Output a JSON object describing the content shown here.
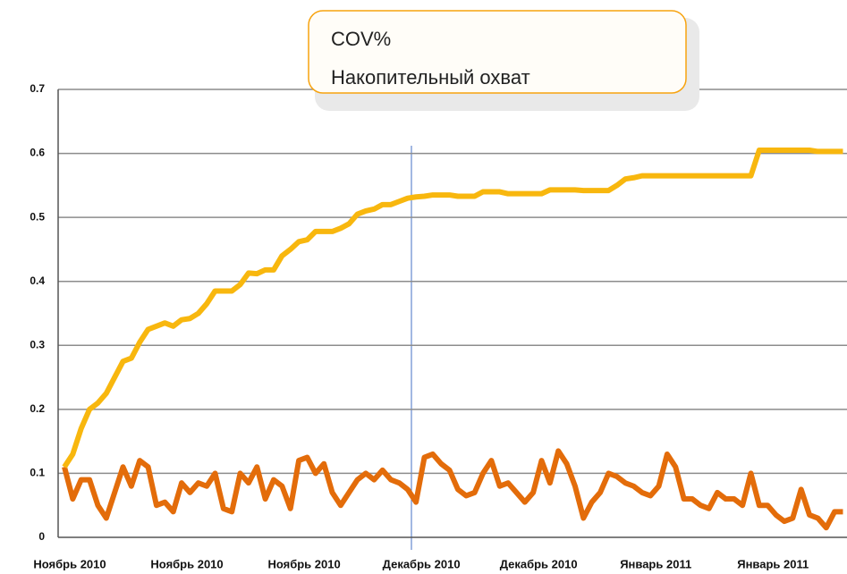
{
  "chart_data": {
    "type": "line",
    "categories": [
      "Ноябрь 2010",
      null,
      null,
      null,
      null,
      null,
      null,
      null,
      null,
      null,
      null,
      null,
      null,
      null,
      "Ноябрь 2010",
      null,
      null,
      null,
      null,
      null,
      null,
      null,
      null,
      null,
      null,
      null,
      null,
      null,
      "Ноябрь 2010",
      null,
      null,
      null,
      null,
      null,
      null,
      null,
      null,
      null,
      null,
      null,
      null,
      null,
      "Декабрь 2010",
      null,
      null,
      null,
      null,
      null,
      null,
      null,
      null,
      null,
      null,
      null,
      null,
      null,
      "Декабрь 2010",
      null,
      null,
      null,
      null,
      null,
      null,
      null,
      null,
      null,
      null,
      null,
      null,
      null,
      "Январь 2011",
      null,
      null,
      null,
      null,
      null,
      null,
      null,
      null,
      null,
      null,
      null,
      null,
      null,
      "Январь 2011",
      null,
      null,
      null,
      null,
      null,
      null,
      null,
      null,
      null
    ],
    "series": [
      {
        "name": "COV%",
        "color": "#e36c0a",
        "values": [
          0.11,
          0.06,
          0.09,
          0.09,
          0.05,
          0.03,
          0.07,
          0.11,
          0.08,
          0.12,
          0.11,
          0.05,
          0.055,
          0.04,
          0.085,
          0.07,
          0.085,
          0.08,
          0.1,
          0.045,
          0.04,
          0.1,
          0.085,
          0.11,
          0.06,
          0.09,
          0.08,
          0.045,
          0.12,
          0.125,
          0.1,
          0.115,
          0.07,
          0.05,
          0.07,
          0.09,
          0.1,
          0.09,
          0.105,
          0.09,
          0.085,
          0.075,
          0.055,
          0.125,
          0.13,
          0.115,
          0.105,
          0.075,
          0.065,
          0.07,
          0.1,
          0.12,
          0.08,
          0.085,
          0.07,
          0.055,
          0.07,
          0.12,
          0.085,
          0.135,
          0.115,
          0.08,
          0.03,
          0.055,
          0.07,
          0.1,
          0.095,
          0.085,
          0.08,
          0.07,
          0.065,
          0.08,
          0.13,
          0.11,
          0.06,
          0.06,
          0.05,
          0.045,
          0.07,
          0.06,
          0.06,
          0.05,
          0.1,
          0.05,
          0.05,
          0.035,
          0.025,
          0.03,
          0.075,
          0.035,
          0.03,
          0.015,
          0.04,
          0.04
        ]
      },
      {
        "name": "Накопительный охват",
        "color": "#f8b70e",
        "values": [
          0.11,
          0.13,
          0.17,
          0.2,
          0.21,
          0.225,
          0.25,
          0.275,
          0.28,
          0.305,
          0.325,
          0.33,
          0.335,
          0.33,
          0.34,
          0.342,
          0.35,
          0.365,
          0.385,
          0.385,
          0.385,
          0.395,
          0.413,
          0.412,
          0.418,
          0.418,
          0.44,
          0.45,
          0.462,
          0.465,
          0.478,
          0.478,
          0.478,
          0.483,
          0.49,
          0.505,
          0.51,
          0.513,
          0.52,
          0.52,
          0.525,
          0.53,
          0.532,
          0.533,
          0.535,
          0.535,
          0.535,
          0.533,
          0.533,
          0.533,
          0.54,
          0.54,
          0.54,
          0.537,
          0.537,
          0.537,
          0.537,
          0.537,
          0.543,
          0.543,
          0.543,
          0.543,
          0.542,
          0.542,
          0.542,
          0.542,
          0.55,
          0.56,
          0.562,
          0.565,
          0.565,
          0.565,
          0.565,
          0.565,
          0.565,
          0.565,
          0.565,
          0.565,
          0.565,
          0.565,
          0.565,
          0.565,
          0.565,
          0.605,
          0.605,
          0.605,
          0.605,
          0.605,
          0.605,
          0.605,
          0.603,
          0.603,
          0.603,
          0.603
        ]
      }
    ],
    "ylim": [
      0,
      0.7
    ],
    "yticks": [
      0,
      0.1,
      0.2,
      0.3,
      0.4,
      0.5,
      0.6,
      0.7
    ],
    "grid": true
  }
}
